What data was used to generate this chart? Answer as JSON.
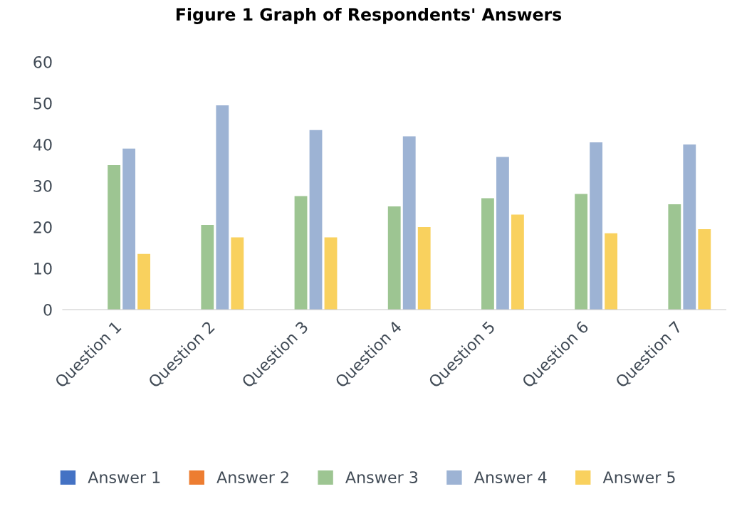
{
  "chart_data": {
    "type": "bar",
    "title": "Figure 1 Graph of Respondents' Answers",
    "categories": [
      "Question 1",
      "Question 2",
      "Question 3",
      "Question 4",
      "Question 5",
      "Question 6",
      "Question 7"
    ],
    "series": [
      {
        "name": "Answer 1",
        "color": "#4472c4",
        "values": [
          0,
          0,
          0,
          0,
          0,
          0,
          0
        ]
      },
      {
        "name": "Answer 2",
        "color": "#ed7d31",
        "values": [
          0,
          0,
          0,
          0,
          0,
          0,
          0
        ]
      },
      {
        "name": "Answer 3",
        "color": "#9dc592",
        "values": [
          35,
          20.5,
          27.5,
          25,
          27,
          28,
          25.5
        ]
      },
      {
        "name": "Answer 4",
        "color": "#9db3d4",
        "values": [
          39,
          49.5,
          43.5,
          42,
          37,
          40.5,
          40
        ]
      },
      {
        "name": "Answer 5",
        "color": "#f9d15e",
        "values": [
          13.5,
          17.5,
          17.5,
          20,
          23,
          18.5,
          19.5
        ]
      }
    ],
    "ylim": [
      0,
      60
    ],
    "yticks": [
      0,
      10,
      20,
      30,
      40,
      50,
      60
    ],
    "grid": false,
    "legend": "bottom"
  }
}
